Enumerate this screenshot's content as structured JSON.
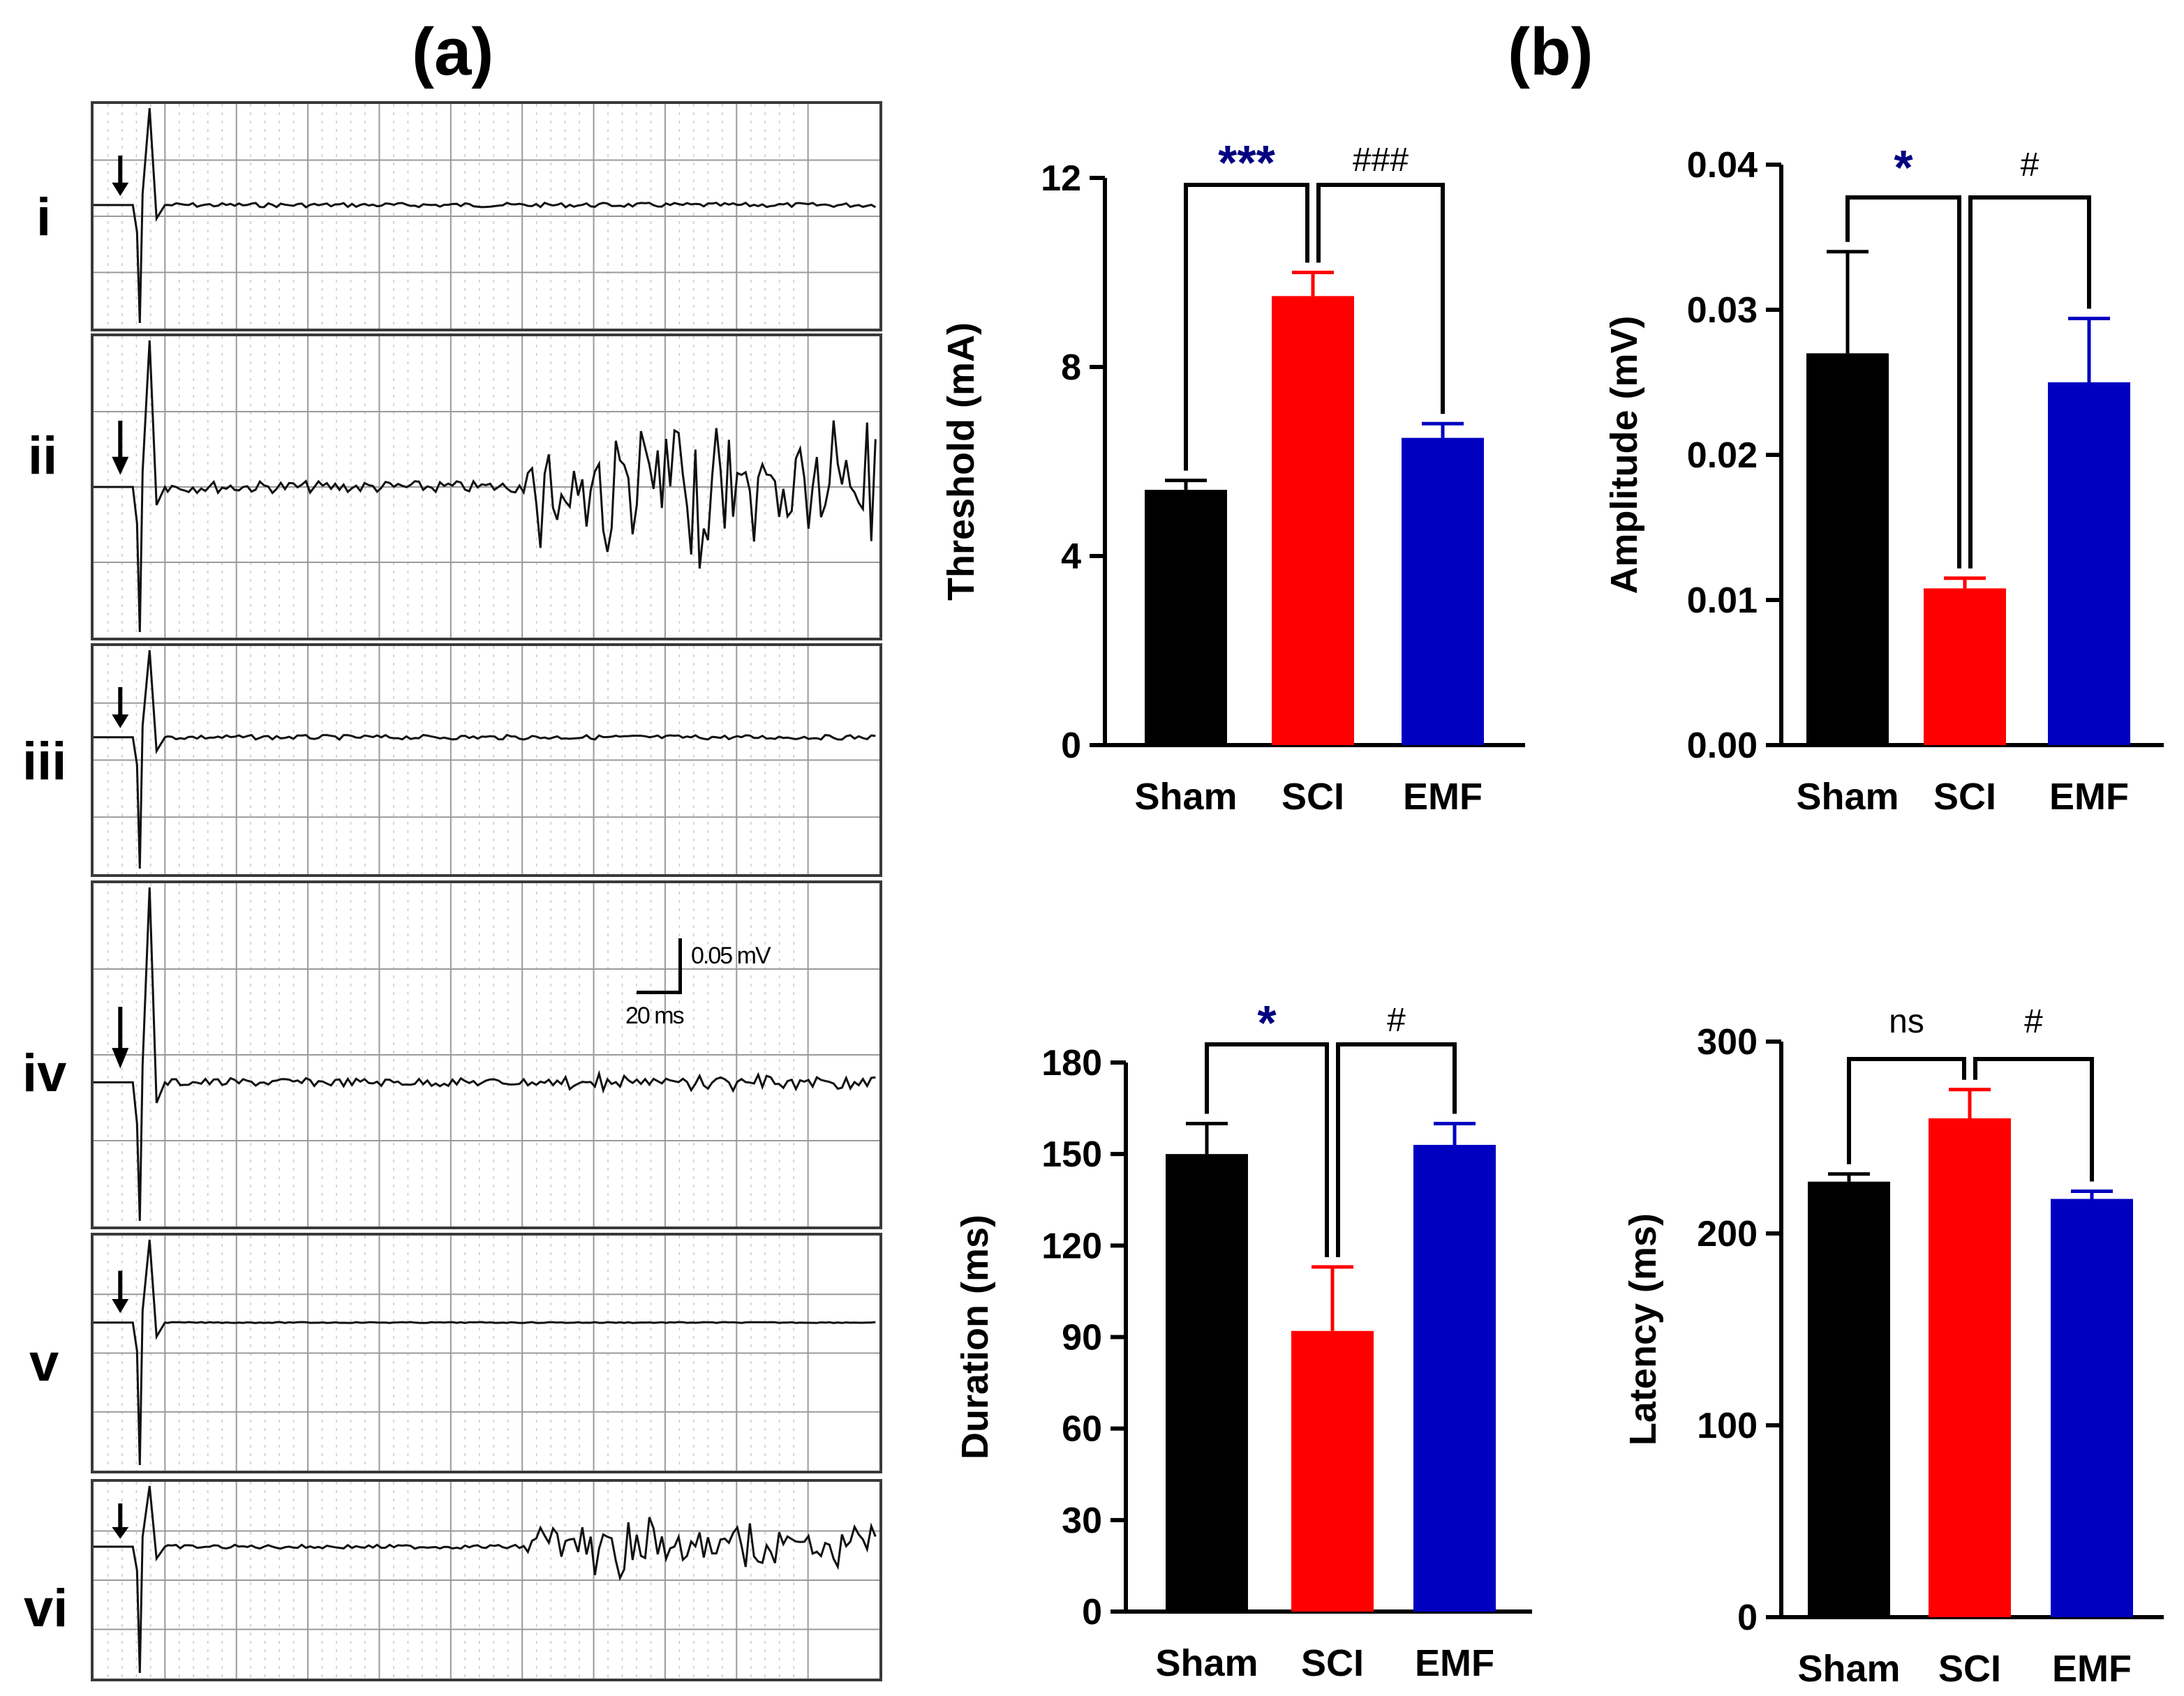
{
  "panel_labels": {
    "a": "(a)",
    "b": "(b)"
  },
  "traces": [
    {
      "label": "i",
      "noise": "low"
    },
    {
      "label": "ii",
      "noise": "high"
    },
    {
      "label": "iii",
      "noise": "low"
    },
    {
      "label": "iv",
      "noise": "medium"
    },
    {
      "label": "v",
      "noise": "flat"
    },
    {
      "label": "vi",
      "noise": "high"
    }
  ],
  "scale_bar": {
    "vertical": "0.05 mV",
    "horizontal": "20 ms"
  },
  "colors": {
    "Sham": "#000000",
    "SCI": "#ff0000",
    "EMF": "#0000c0",
    "grid": "#9a9a9a",
    "trace": "#111111"
  },
  "chart_data": [
    {
      "type": "bar",
      "categories": [
        "Sham",
        "SCI",
        "EMF"
      ],
      "values": [
        5.4,
        9.5,
        6.5
      ],
      "errors": [
        0.2,
        0.5,
        0.3
      ],
      "ylabel": "Threshold (mA)",
      "ylim": [
        0,
        12
      ],
      "yticks": [
        "0",
        "4",
        "8",
        "12"
      ],
      "comparisons": [
        {
          "from": 0,
          "to": 1,
          "label": "***",
          "color": "#000080"
        },
        {
          "from": 1,
          "to": 2,
          "label": "###",
          "color": "#000000"
        }
      ]
    },
    {
      "type": "bar",
      "categories": [
        "Sham",
        "SCI",
        "EMF"
      ],
      "values": [
        0.027,
        0.0108,
        0.025
      ],
      "errors": [
        0.007,
        0.0007,
        0.0044
      ],
      "ylabel": "Amplitude (mV)",
      "ylim": [
        0,
        0.04
      ],
      "yticks": [
        "0.00",
        "0.01",
        "0.02",
        "0.03",
        "0.04"
      ],
      "comparisons": [
        {
          "from": 0,
          "to": 1,
          "label": "*",
          "color": "#000080"
        },
        {
          "from": 1,
          "to": 2,
          "label": "#",
          "color": "#000000"
        }
      ]
    },
    {
      "type": "bar",
      "categories": [
        "Sham",
        "SCI",
        "EMF"
      ],
      "values": [
        150,
        92,
        153
      ],
      "errors": [
        10,
        21,
        7
      ],
      "ylabel": "Duration (ms)",
      "ylim": [
        0,
        180
      ],
      "yticks": [
        "0",
        "30",
        "60",
        "90",
        "120",
        "150",
        "180"
      ],
      "comparisons": [
        {
          "from": 0,
          "to": 1,
          "label": "*",
          "color": "#000080"
        },
        {
          "from": 1,
          "to": 2,
          "label": "#",
          "color": "#000000"
        }
      ]
    },
    {
      "type": "bar",
      "categories": [
        "Sham",
        "SCI",
        "EMF"
      ],
      "values": [
        227,
        260,
        218
      ],
      "errors": [
        4,
        15,
        4
      ],
      "ylabel": "Latency (ms)",
      "ylim": [
        0,
        300
      ],
      "yticks": [
        "0",
        "100",
        "200",
        "300"
      ],
      "comparisons": [
        {
          "from": 0,
          "to": 1,
          "label": "ns",
          "color": "#000000"
        },
        {
          "from": 1,
          "to": 2,
          "label": "#",
          "color": "#000000"
        }
      ]
    }
  ]
}
